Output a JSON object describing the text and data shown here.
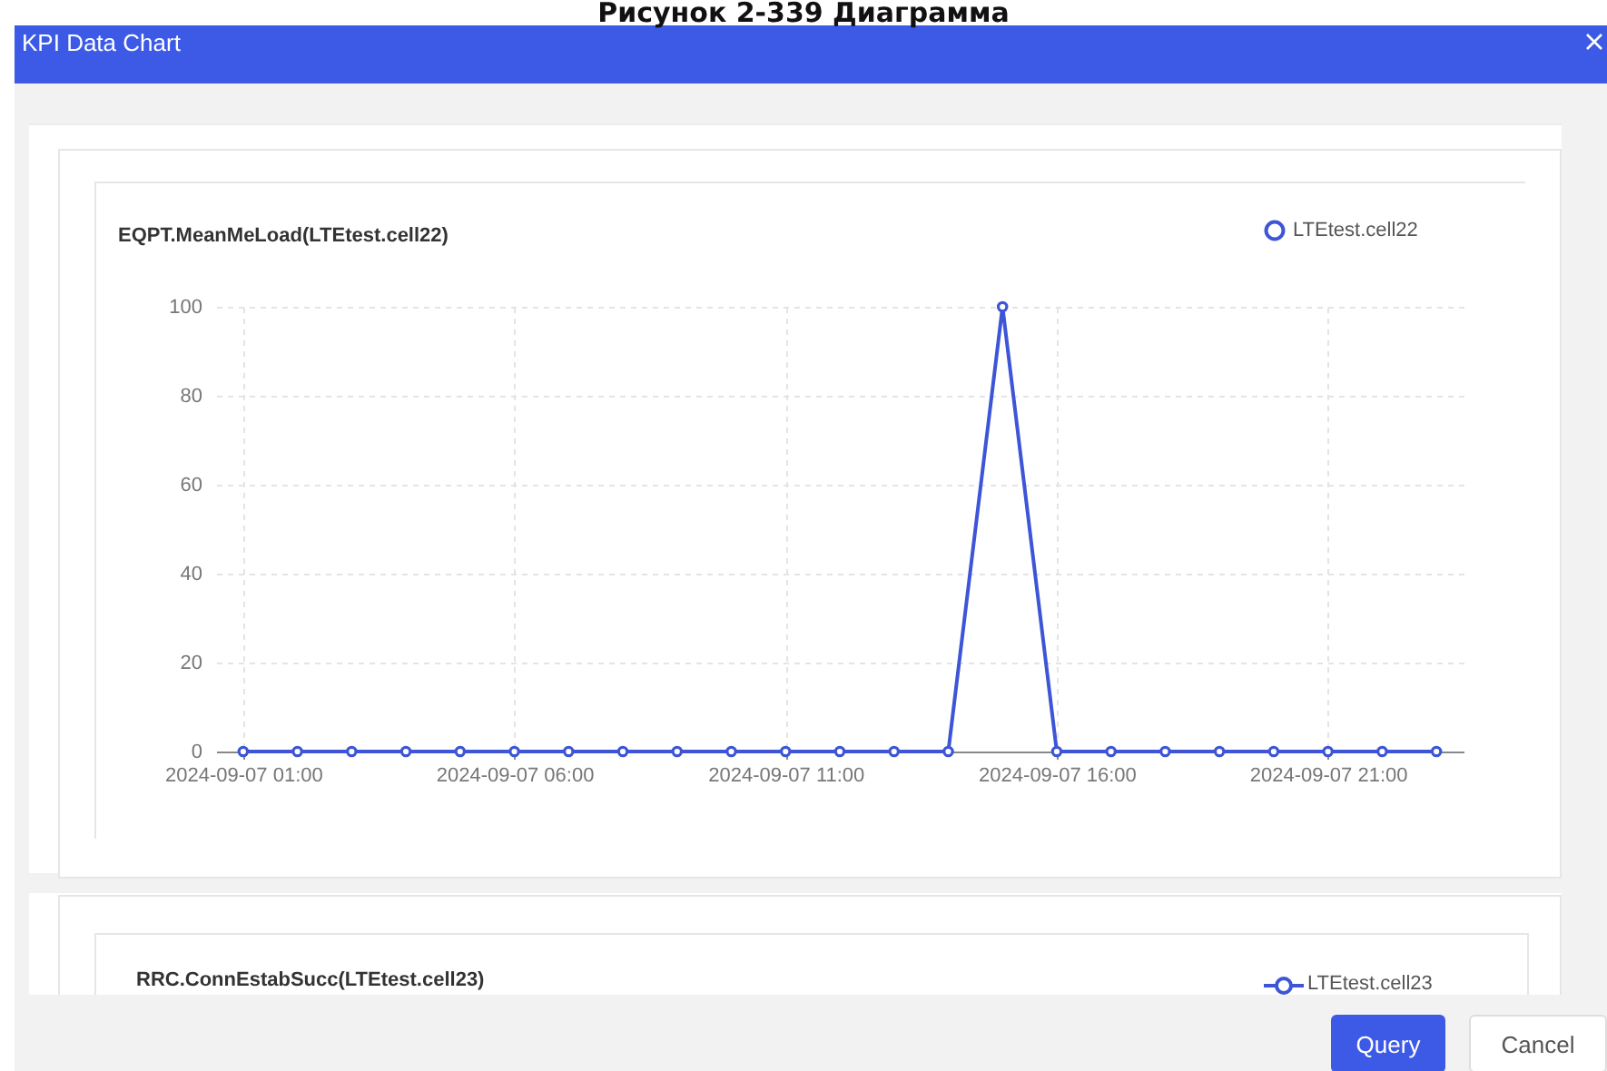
{
  "chart_data": {
    "type": "line",
    "title": "EQPT.MeanMeLoad(LTEtest.cell22)",
    "x": [
      "2024-09-07T01:00",
      "2024-09-07T02:00",
      "2024-09-07T03:00",
      "2024-09-07T04:00",
      "2024-09-07T05:00",
      "2024-09-07T06:00",
      "2024-09-07T07:00",
      "2024-09-07T08:00",
      "2024-09-07T09:00",
      "2024-09-07T10:00",
      "2024-09-07T11:00",
      "2024-09-07T12:00",
      "2024-09-07T13:00",
      "2024-09-07T14:00",
      "2024-09-07T15:00",
      "2024-09-07T16:00",
      "2024-09-07T17:00",
      "2024-09-07T18:00",
      "2024-09-07T19:00",
      "2024-09-07T20:00",
      "2024-09-07T21:00",
      "2024-09-07T22:00",
      "2024-09-07T23:00"
    ],
    "series": [
      {
        "name": "LTEtest.cell22",
        "color": "#3d55d6",
        "values": [
          0,
          0,
          0,
          0,
          0,
          0,
          0,
          0,
          0,
          0,
          0,
          0,
          0,
          0,
          100,
          0,
          0,
          0,
          0,
          0,
          0,
          0,
          0
        ]
      }
    ],
    "xlim": [
      "2024-09-07T00:30",
      "2024-09-07T23:30"
    ],
    "xticks": [
      {
        "value": "2024-09-07T01:00",
        "label": "2024-09-07 01:00"
      },
      {
        "value": "2024-09-07T06:00",
        "label": "2024-09-07 06:00"
      },
      {
        "value": "2024-09-07T11:00",
        "label": "2024-09-07 11:00"
      },
      {
        "value": "2024-09-07T16:00",
        "label": "2024-09-07 16:00"
      },
      {
        "value": "2024-09-07T21:00",
        "label": "2024-09-07 21:00"
      }
    ],
    "ylim": [
      0,
      100
    ],
    "yticks": [
      0,
      20,
      40,
      60,
      80,
      100
    ],
    "grid": true,
    "legend": "top right",
    "marker": "circle",
    "line_style": "solid",
    "annotations": [
      "Рисунок 2-339 Диаграмма",
      "KPI Data Chart",
      "RRC.ConnEstabSucc(LTEtest.cell23)",
      "LTEtest.cell23",
      "Query",
      "Cancel"
    ]
  }
}
